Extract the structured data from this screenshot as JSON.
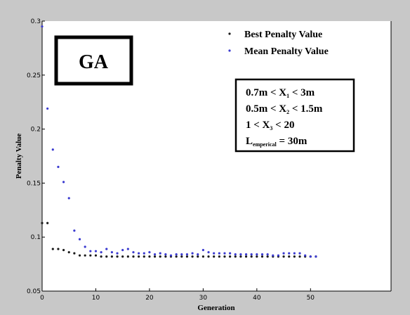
{
  "chart_data": {
    "type": "scatter",
    "xlabel": "Generation",
    "ylabel": "Penalty Value",
    "xlim": [
      0,
      65
    ],
    "ylim": [
      0.05,
      0.3
    ],
    "x_ticks": [
      0,
      10,
      20,
      30,
      40,
      50
    ],
    "y_ticks": [
      0.05,
      0.1,
      0.15,
      0.2,
      0.25,
      0.3
    ],
    "x_tick_labels": [
      "0",
      "10",
      "20",
      "30",
      "40",
      "50"
    ],
    "y_tick_labels": [
      "0.05",
      "0.1",
      "0.15",
      "0.2",
      "0.25",
      "0.3"
    ],
    "grid": false,
    "legend_position": "top-right",
    "series": [
      {
        "name": "Best Penalty Value",
        "color": "#1a1a1a",
        "x": [
          0,
          1,
          2,
          3,
          4,
          5,
          6,
          7,
          8,
          9,
          10,
          11,
          12,
          13,
          14,
          15,
          16,
          17,
          18,
          19,
          20,
          21,
          22,
          23,
          24,
          25,
          26,
          27,
          28,
          29,
          30,
          31,
          32,
          33,
          34,
          35,
          36,
          37,
          38,
          39,
          40,
          41,
          42,
          43,
          44,
          45,
          46,
          47,
          48,
          49,
          50,
          51
        ],
        "values": [
          0.113,
          0.113,
          0.089,
          0.089,
          0.088,
          0.086,
          0.085,
          0.083,
          0.083,
          0.083,
          0.083,
          0.082,
          0.082,
          0.082,
          0.082,
          0.082,
          0.082,
          0.082,
          0.082,
          0.082,
          0.082,
          0.082,
          0.082,
          0.082,
          0.082,
          0.082,
          0.082,
          0.082,
          0.082,
          0.082,
          0.082,
          0.082,
          0.082,
          0.082,
          0.082,
          0.082,
          0.082,
          0.082,
          0.082,
          0.082,
          0.082,
          0.082,
          0.082,
          0.082,
          0.082,
          0.082,
          0.082,
          0.082,
          0.082,
          0.082,
          0.082,
          0.082
        ]
      },
      {
        "name": "Mean Penalty Value",
        "color": "#3a3ad0",
        "x": [
          0,
          1,
          2,
          3,
          4,
          5,
          6,
          7,
          8,
          9,
          10,
          11,
          12,
          13,
          14,
          15,
          16,
          17,
          18,
          19,
          20,
          21,
          22,
          23,
          24,
          25,
          26,
          27,
          28,
          29,
          30,
          31,
          32,
          33,
          34,
          35,
          36,
          37,
          38,
          39,
          40,
          41,
          42,
          43,
          44,
          45,
          46,
          47,
          48,
          49,
          50,
          51
        ],
        "values": [
          0.295,
          0.219,
          0.181,
          0.165,
          0.151,
          0.136,
          0.106,
          0.098,
          0.091,
          0.087,
          0.087,
          0.086,
          0.089,
          0.086,
          0.085,
          0.088,
          0.089,
          0.086,
          0.085,
          0.085,
          0.086,
          0.084,
          0.085,
          0.084,
          0.083,
          0.084,
          0.084,
          0.084,
          0.085,
          0.084,
          0.088,
          0.086,
          0.085,
          0.085,
          0.085,
          0.085,
          0.084,
          0.084,
          0.084,
          0.084,
          0.084,
          0.084,
          0.084,
          0.083,
          0.083,
          0.085,
          0.085,
          0.085,
          0.085,
          0.083,
          0.082,
          0.082
        ]
      }
    ]
  },
  "annotations": {
    "ga_label": "GA",
    "constraints": [
      {
        "main": "0.7m < X",
        "sub": "1",
        "tail": " < 3m"
      },
      {
        "main": "0.5m < X",
        "sub": "2",
        "tail": " < 1.5m"
      },
      {
        "main": "1 < X",
        "sub": "3",
        "tail": " < 20"
      },
      {
        "main": "L",
        "sub": "emperical",
        "tail": " = 30m"
      }
    ]
  }
}
